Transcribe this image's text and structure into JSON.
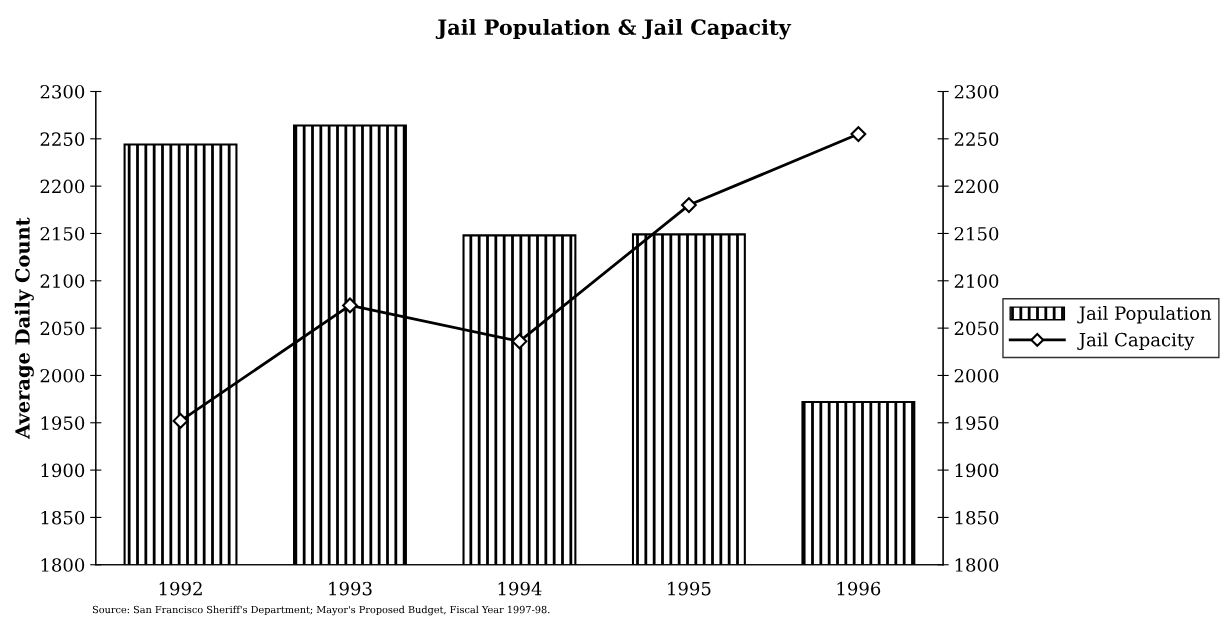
{
  "chart_data": {
    "type": "bar",
    "title": "Jail Population & Jail Capacity",
    "ylabel": "Average Daily Count",
    "categories": [
      "1992",
      "1993",
      "1994",
      "1995",
      "1996"
    ],
    "series": [
      {
        "name": "Jail Population",
        "color": "#000000",
        "values": [
          2244,
          2264,
          2148,
          2149,
          1972
        ]
      },
      {
        "name": "Jail Capacity",
        "type": "line",
        "axis": "y2",
        "color": "#000000",
        "marker": "diamond",
        "line_style": "solid",
        "values": [
          1952,
          2074,
          2036,
          2180,
          2255
        ]
      }
    ],
    "ylim": [
      1800,
      2300
    ],
    "yticks": [
      1800,
      1850,
      1900,
      1950,
      2000,
      2050,
      2100,
      2150,
      2200,
      2250,
      2300
    ],
    "y2lim": [
      1800,
      2300
    ],
    "y2ticks": [
      1800,
      1850,
      1900,
      1950,
      2000,
      2050,
      2100,
      2150,
      2200,
      2250,
      2300
    ],
    "grid": false,
    "legend": "right",
    "annotations": [
      "Source: San Francisco Sheriff's Department; Mayor's Proposed Budget, Fiscal Year 1997-98."
    ]
  }
}
